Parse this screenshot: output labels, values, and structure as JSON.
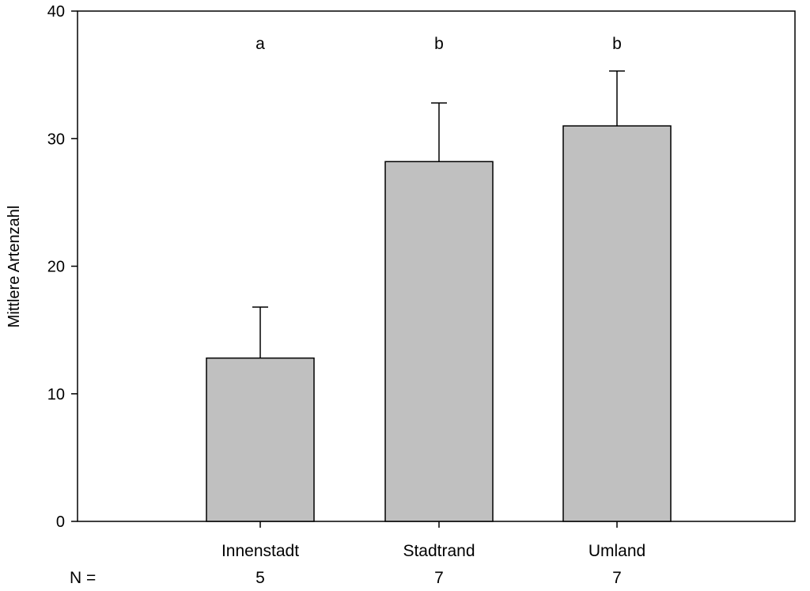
{
  "chart_data": {
    "type": "bar",
    "title": "",
    "xlabel": "",
    "ylabel": "Mittlere Artenzahl",
    "ylim": [
      0,
      40
    ],
    "yticks": [
      0,
      10,
      20,
      30,
      40
    ],
    "categories": [
      "Innenstadt",
      "Stadtrand",
      "Umland"
    ],
    "values": [
      12.8,
      28.2,
      31.0
    ],
    "error_upper": [
      4.0,
      4.6,
      4.3
    ],
    "significance": [
      "a",
      "b",
      "b"
    ],
    "n_label": "N =",
    "n_values": [
      "5",
      "7",
      "7"
    ],
    "grid": false,
    "legend": "none",
    "colors": {
      "bar_fill": "#c0c0c0",
      "bar_stroke": "#000000",
      "axis": "#000000"
    }
  }
}
